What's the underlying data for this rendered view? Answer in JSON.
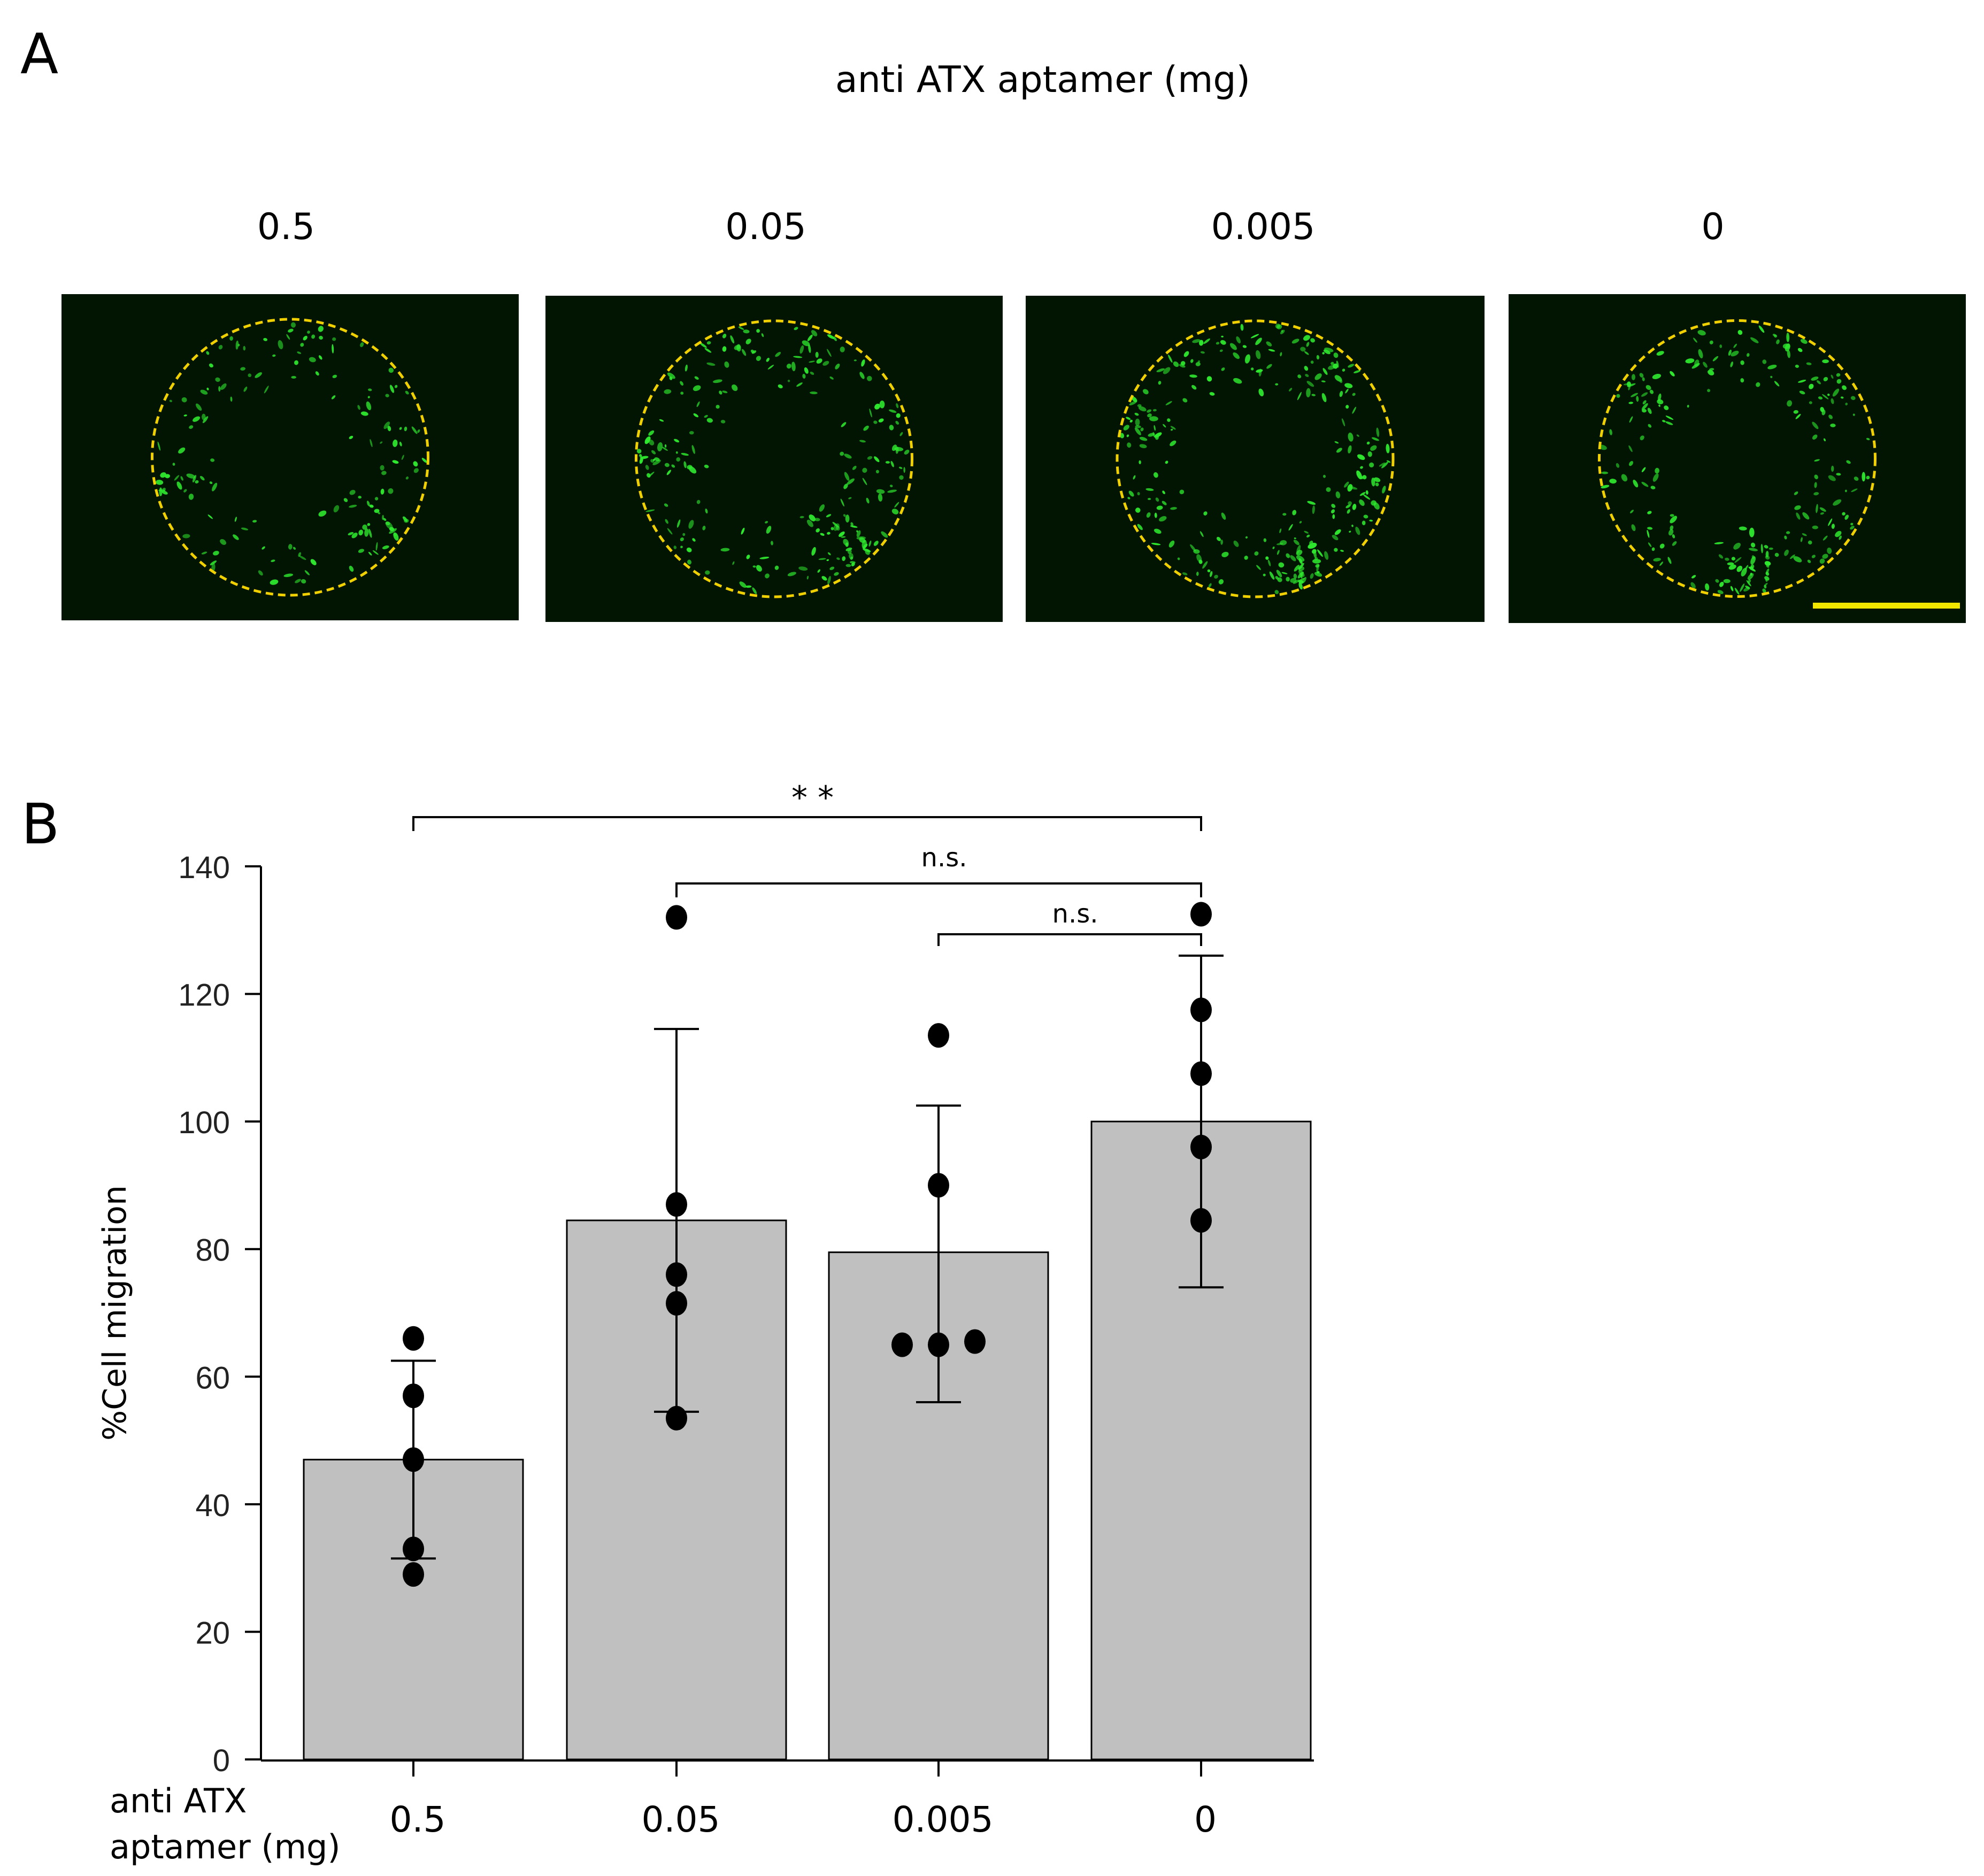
{
  "panel_a": {
    "letter": "A",
    "title": "anti ATX aptamer (mg)",
    "doses": [
      "0.5",
      "0.05",
      "0.005",
      "0"
    ],
    "colors": {
      "background": "#021502",
      "cells": "#2ee82e",
      "circle": "#f0d000",
      "scale_bar": "#f2e600"
    }
  },
  "panel_b": {
    "letter": "B",
    "x_axis_title_line1": "anti ATX",
    "x_axis_title_line2": "aptamer (mg)"
  },
  "chart_data": {
    "type": "bar",
    "categories": [
      "0.5",
      "0.05",
      "0.005",
      "0"
    ],
    "values": [
      47,
      84.5,
      79.5,
      100
    ],
    "error_upper": [
      62.5,
      114.5,
      102.5,
      126
    ],
    "error_lower": [
      31.5,
      54.5,
      56,
      74
    ],
    "points": [
      [
        66,
        57,
        47,
        33,
        29
      ],
      [
        132,
        87,
        76,
        71.5,
        53.5
      ],
      [
        113.5,
        90,
        65,
        65,
        65.5
      ],
      [
        132.5,
        117.5,
        107.5,
        96,
        84.5
      ]
    ],
    "ylabel": "%Cell migration",
    "xlabel": "anti ATX aptamer (mg)",
    "ylim": [
      0,
      140
    ],
    "yticks": [
      0,
      20,
      40,
      60,
      80,
      100,
      120,
      140
    ],
    "bar_color": "#c0c0c0",
    "significance": [
      {
        "from": "0.5",
        "to": "0",
        "label": "* *"
      },
      {
        "from": "0.05",
        "to": "0",
        "label": "n.s."
      },
      {
        "from": "0.005",
        "to": "0",
        "label": "n.s."
      }
    ]
  }
}
